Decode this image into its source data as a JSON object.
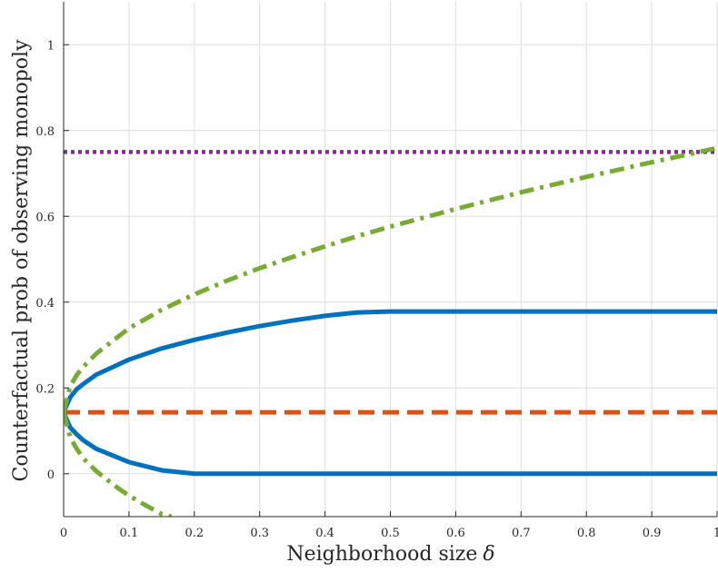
{
  "chart_data": {
    "type": "line",
    "title": "",
    "xlabel": "Neighborhood size",
    "xlabel_symbol": "δ",
    "ylabel": "Counterfactual prob of observing monopoly",
    "xlim": [
      0,
      1
    ],
    "ylim": [
      -0.1,
      1.1
    ],
    "xticks": [
      0,
      0.1,
      0.2,
      0.3,
      0.4,
      0.5,
      0.6,
      0.7,
      0.8,
      0.9,
      1
    ],
    "xtick_labels": [
      "0",
      "0.1",
      "0.2",
      "0.3",
      "0.4",
      "0.5",
      "0.6",
      "0.7",
      "0.8",
      "0.9",
      "1"
    ],
    "yticks": [
      0,
      0.2,
      0.4,
      0.6,
      0.8,
      1
    ],
    "ytick_labels": [
      "0",
      "0.2",
      "0.4",
      "0.6",
      "0.8",
      "1"
    ],
    "grid": true,
    "series": [
      {
        "key": "upper-bound-solid",
        "style": "solid",
        "color": "#0072BD",
        "x": [
          0,
          0.01,
          0.02,
          0.03,
          0.05,
          0.1,
          0.15,
          0.2,
          0.25,
          0.3,
          0.35,
          0.4,
          0.45,
          0.5,
          0.6,
          0.7,
          0.8,
          0.9,
          1.0
        ],
        "y": [
          0.143,
          0.178,
          0.197,
          0.209,
          0.231,
          0.266,
          0.292,
          0.312,
          0.329,
          0.344,
          0.357,
          0.368,
          0.376,
          0.378,
          0.378,
          0.378,
          0.378,
          0.378,
          0.378
        ]
      },
      {
        "key": "lower-bound-solid",
        "style": "solid",
        "color": "#0072BD",
        "x": [
          0,
          0.01,
          0.02,
          0.03,
          0.05,
          0.1,
          0.15,
          0.2,
          0.3,
          0.5,
          0.7,
          0.9,
          1.0
        ],
        "y": [
          0.143,
          0.108,
          0.092,
          0.078,
          0.058,
          0.027,
          0.008,
          0.0,
          0.0,
          0.0,
          0.0,
          0.0,
          0.0
        ]
      },
      {
        "key": "point-estimate-dashed",
        "style": "dashed",
        "color": "#D95319",
        "x": [
          0,
          1
        ],
        "y": [
          0.143,
          0.143
        ]
      },
      {
        "key": "reference-dotted",
        "style": "dotted",
        "color": "#7E2F8E",
        "x": [
          0,
          1
        ],
        "y": [
          0.75,
          0.75
        ]
      },
      {
        "key": "upper-bound-dashdot",
        "style": "dashdot",
        "color": "#77AC30",
        "x": [
          0,
          0.01,
          0.02,
          0.03,
          0.05,
          0.1,
          0.15,
          0.2,
          0.25,
          0.3,
          0.35,
          0.4,
          0.45,
          0.5,
          0.6,
          0.7,
          0.8,
          0.9,
          1.0
        ],
        "y": [
          0.143,
          0.204,
          0.23,
          0.249,
          0.28,
          0.339,
          0.382,
          0.418,
          0.45,
          0.479,
          0.505,
          0.53,
          0.554,
          0.576,
          0.617,
          0.656,
          0.692,
          0.726,
          0.759
        ]
      },
      {
        "key": "lower-bound-dashdot",
        "style": "dashdot",
        "color": "#77AC30",
        "x": [
          0,
          0.01,
          0.02,
          0.03,
          0.05,
          0.08,
          0.1,
          0.12,
          0.15,
          0.165
        ],
        "y": [
          0.143,
          0.085,
          0.058,
          0.036,
          0.006,
          -0.03,
          -0.051,
          -0.069,
          -0.094,
          -0.1
        ]
      }
    ]
  }
}
